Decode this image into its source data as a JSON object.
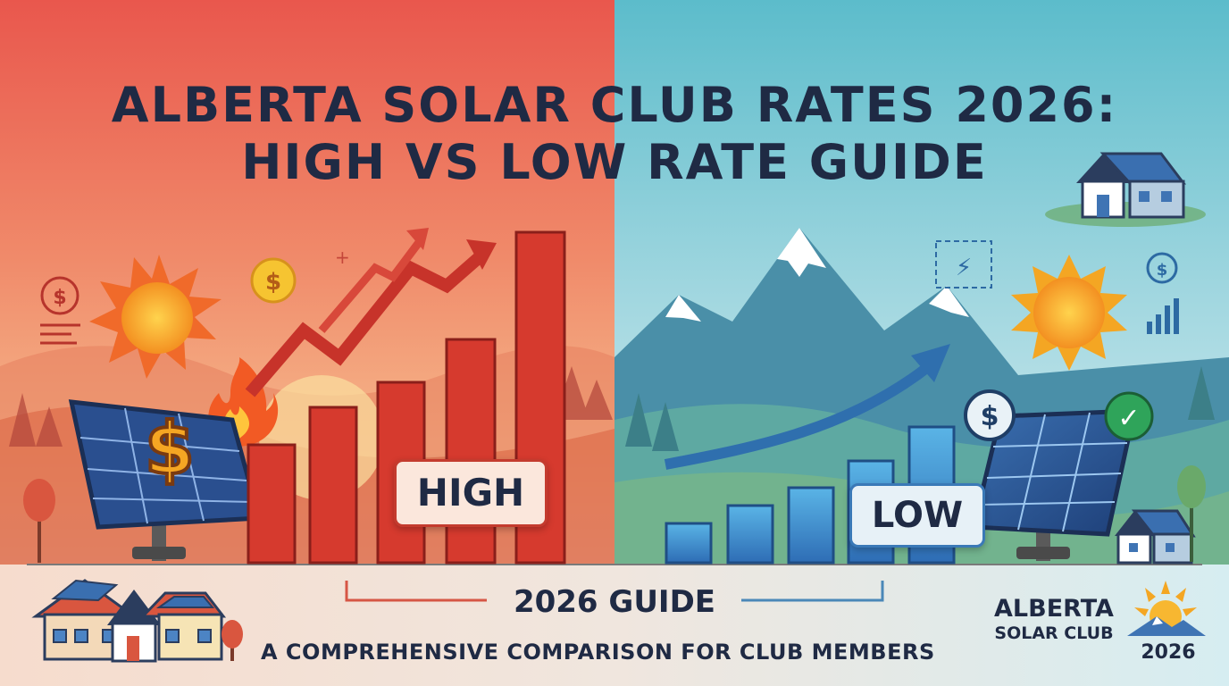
{
  "title": {
    "line1": "ALBERTA SOLAR CLUB RATES 2026:",
    "line2": "HIGH VS LOW RATE GUIDE"
  },
  "labels": {
    "high": "HIGH",
    "low": "LOW"
  },
  "guide": "2026 GUIDE",
  "subtitle": "A COMPREHENSIVE COMPARISON FOR CLUB MEMBERS",
  "logo": {
    "name": "ALBERTA",
    "club": "SOLAR CLUB",
    "year": "2026"
  },
  "icons": {
    "currency": "$",
    "check": "✓",
    "lightning": "⚡"
  },
  "colors": {
    "high_side": "#e8624f",
    "low_side": "#6fc2cc",
    "high_bar": "#d63a2e",
    "low_bar": "#3d83c4",
    "title_text": "#1f2a44",
    "sun": "#f7a52a"
  }
}
